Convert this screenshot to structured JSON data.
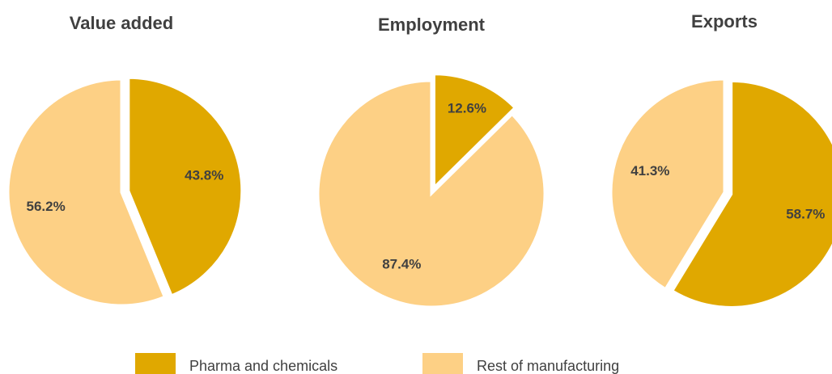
{
  "legend": [
    {
      "name": "Pharma and chemicals",
      "color": "#e0a800"
    },
    {
      "name": "Rest of manufacturing",
      "color": "#fdd085"
    }
  ],
  "chart_data": [
    {
      "type": "pie",
      "title": "Value added",
      "values": [
        43.8,
        56.2
      ],
      "value_labels": [
        "43.8%",
        "56.2%"
      ]
    },
    {
      "type": "pie",
      "title": "Employment",
      "values": [
        12.6,
        87.4
      ],
      "value_labels": [
        "12.6%",
        "87.4%"
      ]
    },
    {
      "type": "pie",
      "title": "Exports",
      "values": [
        58.7,
        41.3
      ],
      "value_labels": [
        "58.7%",
        "41.3%"
      ]
    }
  ]
}
